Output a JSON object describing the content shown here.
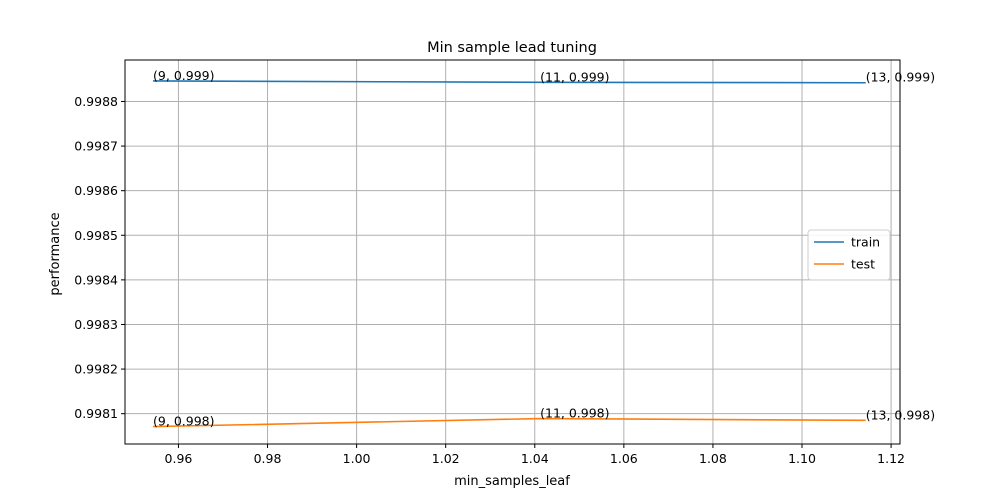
{
  "chart_data": {
    "type": "line",
    "title": "Min sample lead tuning",
    "xlabel": "min_samples_leaf",
    "ylabel": "performance",
    "xlim": [
      0.948,
      1.122
    ],
    "ylim": [
      0.998032,
      0.998893
    ],
    "xticks": [
      "0.96",
      "0.98",
      "1.00",
      "1.02",
      "1.04",
      "1.06",
      "1.08",
      "1.10",
      "1.12"
    ],
    "yticks": [
      "0.9981",
      "0.9982",
      "0.9983",
      "0.9984",
      "0.9985",
      "0.9986",
      "0.9987",
      "0.9988"
    ],
    "grid": true,
    "legend_position": "center-right",
    "series": [
      {
        "name": "train",
        "color": "#1f77b4",
        "x": [
          0.9543,
          1.0412,
          1.1143
        ],
        "y": [
          0.998846,
          0.998843,
          0.998842
        ],
        "labels": [
          "(9, 0.999)",
          "(11, 0.999)",
          "(13, 0.999)"
        ]
      },
      {
        "name": "test",
        "color": "#ff7f0e",
        "x": [
          0.9543,
          1.0412,
          1.1143
        ],
        "y": [
          0.998071,
          0.998089,
          0.998085
        ],
        "labels": [
          "(9, 0.998)",
          "(11, 0.998)",
          "(13, 0.998)"
        ]
      }
    ]
  }
}
